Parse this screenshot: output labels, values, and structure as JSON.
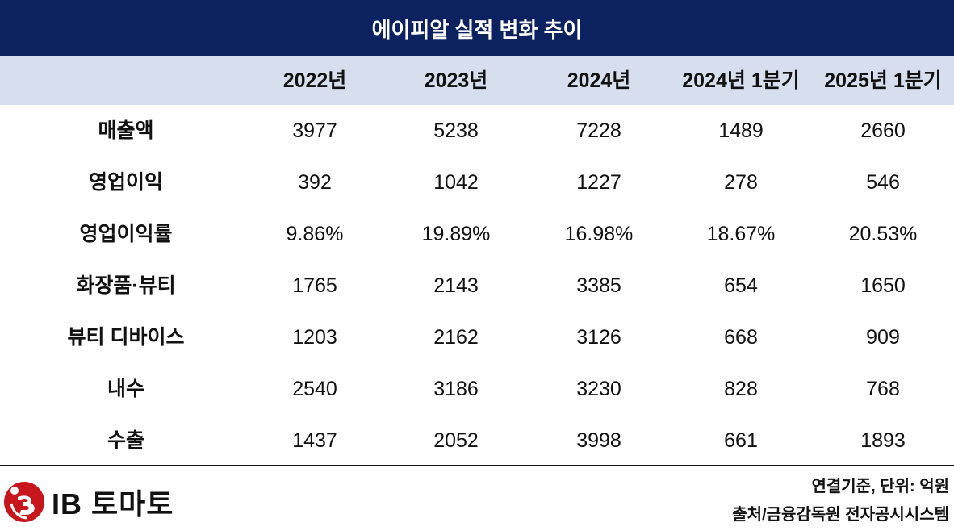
{
  "title": "에이피알 실적 변화 추이",
  "header": {
    "blank": "",
    "columns": [
      "2022년",
      "2023년",
      "2024년",
      "2024년 1분기",
      "2025년 1분기"
    ]
  },
  "rows": [
    {
      "label": "매출액",
      "values": [
        "3977",
        "5238",
        "7228",
        "1489",
        "2660"
      ]
    },
    {
      "label": "영업이익",
      "values": [
        "392",
        "1042",
        "1227",
        "278",
        "546"
      ]
    },
    {
      "label": "영업이익률",
      "values": [
        "9.86%",
        "19.89%",
        "16.98%",
        "18.67%",
        "20.53%"
      ]
    },
    {
      "label": "화장품·뷰티",
      "values": [
        "1765",
        "2143",
        "3385",
        "654",
        "1650"
      ]
    },
    {
      "label": "뷰티 디바이스",
      "values": [
        "1203",
        "2162",
        "3126",
        "668",
        "909"
      ]
    },
    {
      "label": "내수",
      "values": [
        "2540",
        "3186",
        "3230",
        "828",
        "768"
      ]
    },
    {
      "label": "수출",
      "values": [
        "1437",
        "2052",
        "3998",
        "661",
        "1893"
      ]
    }
  ],
  "footer": {
    "logo_text": "IB 토마토",
    "logo_icon": "ib-tomato-logo-icon",
    "basis_note": "연결기준, 단위: 억원",
    "source_note": "출처/금융감독원 전자공시시스템"
  },
  "colors": {
    "title_bg": "#0c2260",
    "header_bg": "#d7deee",
    "logo_red": "#c8161d"
  }
}
